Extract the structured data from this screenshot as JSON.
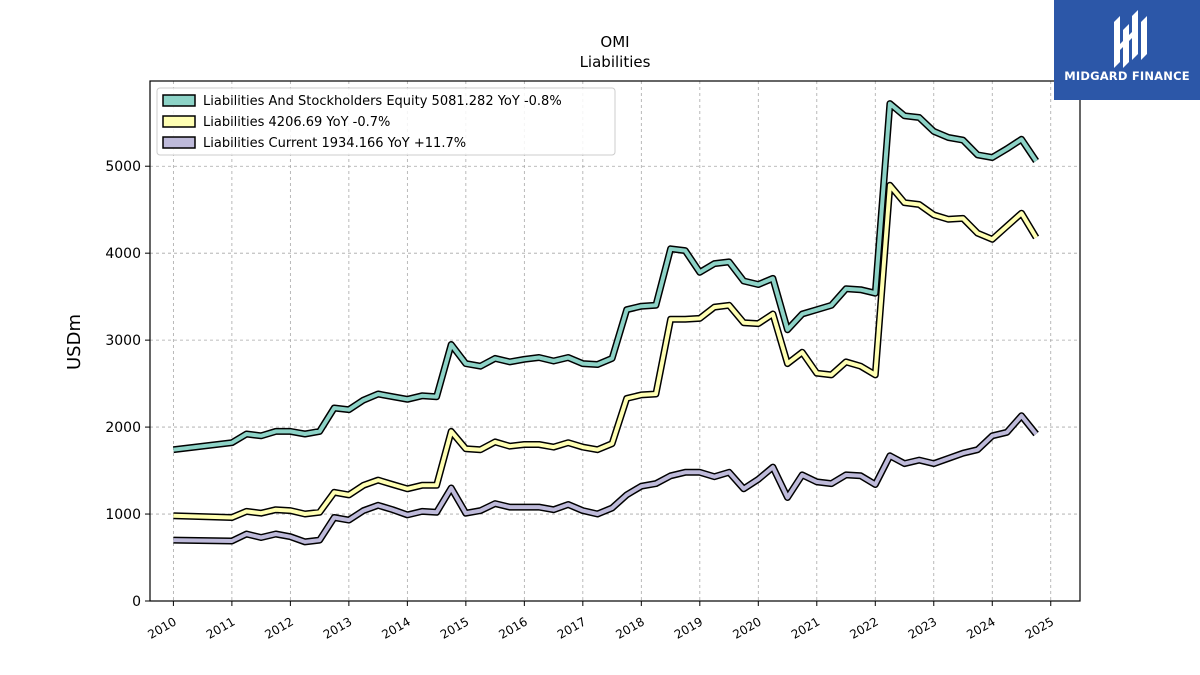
{
  "logo": {
    "name": "MIDGARD FINANCE",
    "bg": "#2c57a8"
  },
  "chart_data": {
    "type": "line",
    "title": "OMI",
    "subtitle": "Liabilities",
    "xlabel": "",
    "ylabel": "USDm",
    "xlim": [
      2009.6,
      2025.5
    ],
    "ylim": [
      0,
      5980
    ],
    "xticks": [
      "2010",
      "2011",
      "2012",
      "2013",
      "2014",
      "2015",
      "2016",
      "2017",
      "2018",
      "2019",
      "2020",
      "2021",
      "2022",
      "2023",
      "2024",
      "2025"
    ],
    "yticks": [
      "0",
      "1000",
      "2000",
      "3000",
      "4000",
      "5000"
    ],
    "grid": true,
    "legend_position": "top-left",
    "series": [
      {
        "name": "Liabilities And Stockholders Equity  5081.282 YoY -0.8%",
        "color": "#8dd3c7",
        "points": [
          [
            2010.0,
            1740
          ],
          [
            2011.0,
            1820
          ],
          [
            2011.25,
            1920
          ],
          [
            2011.5,
            1900
          ],
          [
            2011.75,
            1950
          ],
          [
            2012.0,
            1950
          ],
          [
            2012.25,
            1920
          ],
          [
            2012.5,
            1950
          ],
          [
            2012.75,
            2220
          ],
          [
            2013.0,
            2200
          ],
          [
            2013.25,
            2310
          ],
          [
            2013.5,
            2380
          ],
          [
            2013.75,
            2350
          ],
          [
            2014.0,
            2320
          ],
          [
            2014.25,
            2360
          ],
          [
            2014.5,
            2350
          ],
          [
            2014.75,
            2950
          ],
          [
            2015.0,
            2730
          ],
          [
            2015.25,
            2700
          ],
          [
            2015.5,
            2790
          ],
          [
            2015.75,
            2750
          ],
          [
            2016.0,
            2780
          ],
          [
            2016.25,
            2800
          ],
          [
            2016.5,
            2760
          ],
          [
            2016.75,
            2800
          ],
          [
            2017.0,
            2730
          ],
          [
            2017.25,
            2720
          ],
          [
            2017.5,
            2790
          ],
          [
            2017.75,
            3350
          ],
          [
            2018.0,
            3390
          ],
          [
            2018.25,
            3400
          ],
          [
            2018.5,
            4050
          ],
          [
            2018.75,
            4030
          ],
          [
            2019.0,
            3780
          ],
          [
            2019.25,
            3880
          ],
          [
            2019.5,
            3900
          ],
          [
            2019.75,
            3680
          ],
          [
            2020.0,
            3640
          ],
          [
            2020.25,
            3710
          ],
          [
            2020.5,
            3120
          ],
          [
            2020.75,
            3300
          ],
          [
            2021.0,
            3350
          ],
          [
            2021.25,
            3400
          ],
          [
            2021.5,
            3590
          ],
          [
            2021.75,
            3580
          ],
          [
            2022.0,
            3540
          ],
          [
            2022.25,
            5720
          ],
          [
            2022.5,
            5580
          ],
          [
            2022.75,
            5560
          ],
          [
            2023.0,
            5400
          ],
          [
            2023.25,
            5330
          ],
          [
            2023.5,
            5300
          ],
          [
            2023.75,
            5130
          ],
          [
            2024.0,
            5100
          ],
          [
            2024.25,
            5200
          ],
          [
            2024.5,
            5310
          ],
          [
            2024.75,
            5060
          ]
        ]
      },
      {
        "name": "Liabilities  4206.69 YoY -0.7%",
        "color": "#ffffb3",
        "points": [
          [
            2010.0,
            980
          ],
          [
            2011.0,
            960
          ],
          [
            2011.25,
            1030
          ],
          [
            2011.5,
            1010
          ],
          [
            2011.75,
            1050
          ],
          [
            2012.0,
            1040
          ],
          [
            2012.25,
            1000
          ],
          [
            2012.5,
            1020
          ],
          [
            2012.75,
            1250
          ],
          [
            2013.0,
            1220
          ],
          [
            2013.25,
            1330
          ],
          [
            2013.5,
            1390
          ],
          [
            2013.75,
            1340
          ],
          [
            2014.0,
            1290
          ],
          [
            2014.25,
            1330
          ],
          [
            2014.5,
            1330
          ],
          [
            2014.75,
            1950
          ],
          [
            2015.0,
            1750
          ],
          [
            2015.25,
            1740
          ],
          [
            2015.5,
            1830
          ],
          [
            2015.75,
            1780
          ],
          [
            2016.0,
            1800
          ],
          [
            2016.25,
            1800
          ],
          [
            2016.5,
            1770
          ],
          [
            2016.75,
            1820
          ],
          [
            2017.0,
            1770
          ],
          [
            2017.25,
            1740
          ],
          [
            2017.5,
            1810
          ],
          [
            2017.75,
            2330
          ],
          [
            2018.0,
            2370
          ],
          [
            2018.25,
            2380
          ],
          [
            2018.5,
            3240
          ],
          [
            2018.75,
            3240
          ],
          [
            2019.0,
            3250
          ],
          [
            2019.25,
            3380
          ],
          [
            2019.5,
            3400
          ],
          [
            2019.75,
            3200
          ],
          [
            2020.0,
            3190
          ],
          [
            2020.25,
            3300
          ],
          [
            2020.5,
            2730
          ],
          [
            2020.75,
            2860
          ],
          [
            2021.0,
            2620
          ],
          [
            2021.25,
            2600
          ],
          [
            2021.5,
            2750
          ],
          [
            2021.75,
            2700
          ],
          [
            2022.0,
            2600
          ],
          [
            2022.25,
            4780
          ],
          [
            2022.5,
            4580
          ],
          [
            2022.75,
            4560
          ],
          [
            2023.0,
            4440
          ],
          [
            2023.25,
            4390
          ],
          [
            2023.5,
            4400
          ],
          [
            2023.75,
            4230
          ],
          [
            2024.0,
            4160
          ],
          [
            2024.25,
            4310
          ],
          [
            2024.5,
            4460
          ],
          [
            2024.75,
            4180
          ]
        ]
      },
      {
        "name": "Liabilities Current  1934.166 YoY +11.7%",
        "color": "#bebada",
        "points": [
          [
            2010.0,
            700
          ],
          [
            2011.0,
            690
          ],
          [
            2011.25,
            770
          ],
          [
            2011.5,
            730
          ],
          [
            2011.75,
            770
          ],
          [
            2012.0,
            740
          ],
          [
            2012.25,
            680
          ],
          [
            2012.5,
            700
          ],
          [
            2012.75,
            960
          ],
          [
            2013.0,
            930
          ],
          [
            2013.25,
            1040
          ],
          [
            2013.5,
            1100
          ],
          [
            2013.75,
            1050
          ],
          [
            2014.0,
            990
          ],
          [
            2014.25,
            1030
          ],
          [
            2014.5,
            1020
          ],
          [
            2014.75,
            1300
          ],
          [
            2015.0,
            1010
          ],
          [
            2015.25,
            1040
          ],
          [
            2015.5,
            1120
          ],
          [
            2015.75,
            1080
          ],
          [
            2016.0,
            1080
          ],
          [
            2016.25,
            1080
          ],
          [
            2016.5,
            1050
          ],
          [
            2016.75,
            1110
          ],
          [
            2017.0,
            1040
          ],
          [
            2017.25,
            1000
          ],
          [
            2017.5,
            1070
          ],
          [
            2017.75,
            1220
          ],
          [
            2018.0,
            1320
          ],
          [
            2018.25,
            1350
          ],
          [
            2018.5,
            1440
          ],
          [
            2018.75,
            1480
          ],
          [
            2019.0,
            1480
          ],
          [
            2019.25,
            1430
          ],
          [
            2019.5,
            1480
          ],
          [
            2019.75,
            1290
          ],
          [
            2020.0,
            1400
          ],
          [
            2020.25,
            1540
          ],
          [
            2020.5,
            1190
          ],
          [
            2020.75,
            1450
          ],
          [
            2021.0,
            1370
          ],
          [
            2021.25,
            1350
          ],
          [
            2021.5,
            1450
          ],
          [
            2021.75,
            1440
          ],
          [
            2022.0,
            1340
          ],
          [
            2022.25,
            1670
          ],
          [
            2022.5,
            1580
          ],
          [
            2022.75,
            1620
          ],
          [
            2023.0,
            1580
          ],
          [
            2023.25,
            1640
          ],
          [
            2023.5,
            1700
          ],
          [
            2023.75,
            1740
          ],
          [
            2024.0,
            1900
          ],
          [
            2024.25,
            1940
          ],
          [
            2024.5,
            2130
          ],
          [
            2024.75,
            1920
          ]
        ]
      }
    ]
  }
}
